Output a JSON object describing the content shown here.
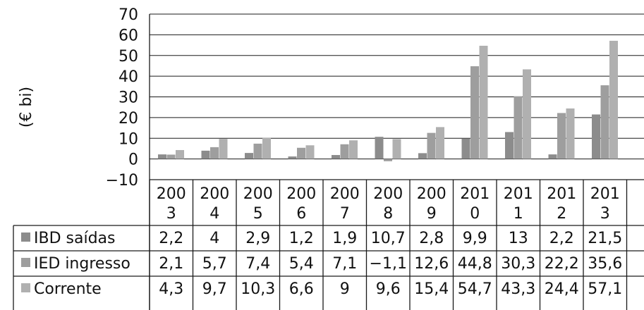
{
  "chart_data": {
    "type": "bar",
    "categories": [
      [
        "200",
        "3"
      ],
      [
        "200",
        "4"
      ],
      [
        "200",
        "5"
      ],
      [
        "200",
        "6"
      ],
      [
        "200",
        "7"
      ],
      [
        "200",
        "8"
      ],
      [
        "200",
        "9"
      ],
      [
        "201",
        "0"
      ],
      [
        "201",
        "1"
      ],
      [
        "201",
        "2"
      ],
      [
        "201",
        "3"
      ]
    ],
    "series": [
      {
        "name": "IBD saídas",
        "values": [
          2.2,
          4,
          2.9,
          1.2,
          1.9,
          10.7,
          2.8,
          9.9,
          13,
          2.2,
          21.5
        ],
        "labels": [
          "2,2",
          "4",
          "2,9",
          "1,2",
          "1,9",
          "10,7",
          "2,8",
          "9,9",
          "13",
          "2,2",
          "21,5"
        ],
        "color": "#8c8c8c"
      },
      {
        "name": "IED ingresso",
        "values": [
          2.1,
          5.7,
          7.4,
          5.4,
          7.1,
          -1.1,
          12.6,
          44.8,
          30.3,
          22.2,
          35.6
        ],
        "labels": [
          "2,1",
          "5,7",
          "7,4",
          "5,4",
          "7,1",
          "−1,1",
          "12,6",
          "44,8",
          "30,3",
          "22,2",
          "35,6"
        ],
        "color": "#9e9e9e"
      },
      {
        "name": "Corrente",
        "values": [
          4.3,
          9.7,
          10.3,
          6.6,
          9,
          9.6,
          15.4,
          54.7,
          43.3,
          24.4,
          57.1
        ],
        "labels": [
          "4,3",
          "9,7",
          "10,3",
          "6,6",
          "9",
          "9,6",
          "15,4",
          "54,7",
          "43,3",
          "24,4",
          "57,1"
        ],
        "color": "#b0b0b0"
      }
    ],
    "yticks": [
      "70",
      "60",
      "50",
      "40",
      "30",
      "20",
      "10",
      "0",
      "−10"
    ],
    "ylabel": "(€ bi)",
    "ylim": [
      -10,
      70
    ],
    "grid": true,
    "legend": "data-table"
  }
}
